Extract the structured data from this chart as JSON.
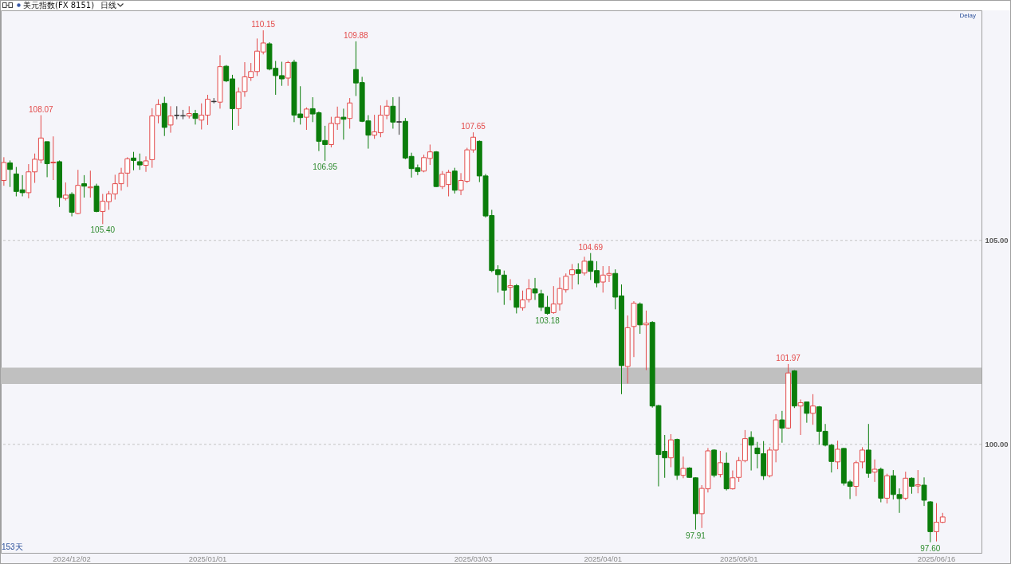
{
  "chart_data": {
    "type": "candlestick",
    "title": "美元指数(FX 8151)",
    "subtitle": "日线",
    "categories": [
      null,
      null,
      null,
      null,
      null,
      null,
      null,
      null,
      null,
      null,
      null,
      "2024/12/02",
      null,
      null,
      null,
      null,
      null,
      null,
      null,
      null,
      null,
      null,
      null,
      null,
      null,
      null,
      null,
      null,
      null,
      null,
      null,
      null,
      null,
      "2025/01/01",
      null,
      null,
      null,
      null,
      null,
      null,
      null,
      null,
      null,
      null,
      null,
      null,
      null,
      null,
      null,
      null,
      null,
      null,
      null,
      null,
      null,
      null,
      null,
      null,
      null,
      null,
      null,
      null,
      null,
      null,
      null,
      null,
      null,
      null,
      null,
      null,
      null,
      null,
      null,
      null,
      null,
      null,
      "2025/03/03",
      null,
      null,
      null,
      null,
      null,
      null,
      null,
      null,
      null,
      null,
      null,
      null,
      null,
      null,
      null,
      null,
      null,
      null,
      null,
      null,
      "2025/04/01",
      null,
      null,
      null,
      null,
      null,
      null,
      null,
      null,
      null,
      null,
      null,
      null,
      null,
      null,
      null,
      null,
      null,
      null,
      null,
      null,
      null,
      "2025/05/01",
      null,
      null,
      null,
      null,
      null,
      null,
      null,
      null,
      null,
      null,
      null,
      null,
      null,
      null,
      null,
      null,
      null,
      null,
      null,
      null,
      null,
      null,
      null,
      null,
      null,
      null,
      null,
      null,
      null,
      null,
      null,
      "2025/06/16",
      null
    ],
    "ohlc": [
      [
        106.47,
        107.04,
        106.34,
        106.91
      ],
      [
        106.9,
        106.96,
        106.31,
        106.74
      ],
      [
        106.63,
        106.8,
        106.08,
        106.2
      ],
      [
        106.24,
        106.6,
        106.08,
        106.17
      ],
      [
        106.17,
        106.87,
        106.03,
        106.68
      ],
      [
        106.68,
        107.13,
        106.41,
        106.99
      ],
      [
        106.97,
        108.07,
        106.89,
        107.51
      ],
      [
        107.42,
        107.42,
        106.55,
        106.88
      ],
      [
        106.9,
        107.55,
        106.48,
        106.92
      ],
      [
        106.93,
        106.96,
        105.82,
        106.05
      ],
      [
        106.03,
        106.42,
        105.98,
        106.11
      ],
      [
        106.13,
        106.18,
        105.59,
        105.69
      ],
      [
        105.66,
        106.73,
        105.64,
        106.35
      ],
      [
        106.39,
        106.6,
        106.05,
        106.33
      ],
      [
        106.29,
        106.71,
        106.05,
        106.31
      ],
      [
        106.33,
        106.39,
        105.69,
        105.71
      ],
      [
        105.71,
        106.14,
        105.4,
        105.96
      ],
      [
        105.95,
        106.21,
        105.75,
        106.14
      ],
      [
        106.14,
        106.61,
        106.0,
        106.39
      ],
      [
        106.39,
        106.78,
        106.22,
        106.65
      ],
      [
        106.65,
        107.04,
        106.31,
        107.0
      ],
      [
        107.02,
        107.17,
        106.72,
        106.96
      ],
      [
        106.93,
        107.13,
        106.73,
        106.85
      ],
      [
        106.84,
        107.06,
        106.68,
        106.95
      ],
      [
        106.98,
        108.24,
        106.78,
        108.05
      ],
      [
        108.06,
        108.46,
        107.87,
        108.33
      ],
      [
        108.36,
        108.52,
        107.56,
        107.77
      ],
      [
        107.83,
        108.29,
        107.64,
        108.05
      ],
      [
        108.07,
        108.29,
        107.97,
        108.06
      ],
      [
        108.06,
        108.2,
        107.97,
        108.05
      ],
      [
        108.05,
        108.29,
        107.99,
        108.11
      ],
      [
        108.11,
        108.2,
        107.84,
        107.99
      ],
      [
        107.95,
        108.36,
        107.72,
        108.07
      ],
      [
        108.07,
        108.57,
        107.83,
        108.46
      ],
      [
        108.41,
        108.49,
        108.36,
        108.4
      ],
      [
        108.39,
        109.54,
        108.23,
        109.26
      ],
      [
        109.27,
        109.3,
        108.88,
        108.91
      ],
      [
        108.96,
        109.06,
        107.71,
        108.23
      ],
      [
        108.23,
        108.75,
        107.81,
        108.64
      ],
      [
        108.65,
        109.37,
        108.52,
        109.01
      ],
      [
        108.99,
        109.35,
        108.91,
        109.14
      ],
      [
        109.14,
        109.95,
        109.03,
        109.64
      ],
      [
        109.62,
        110.15,
        109.56,
        109.84
      ],
      [
        109.82,
        109.86,
        109.17,
        109.2
      ],
      [
        109.22,
        109.4,
        108.57,
        109.04
      ],
      [
        109.04,
        109.38,
        108.79,
        108.96
      ],
      [
        108.98,
        109.4,
        108.79,
        109.36
      ],
      [
        109.37,
        109.43,
        107.9,
        108.07
      ],
      [
        108.1,
        108.78,
        107.84,
        108.01
      ],
      [
        108.02,
        108.26,
        107.71,
        108.22
      ],
      [
        108.23,
        108.51,
        107.9,
        108.1
      ],
      [
        108.13,
        108.16,
        107.19,
        107.43
      ],
      [
        107.45,
        107.81,
        106.95,
        107.35
      ],
      [
        107.35,
        108.03,
        107.28,
        107.87
      ],
      [
        107.86,
        108.28,
        107.71,
        108.02
      ],
      [
        108.02,
        108.23,
        107.47,
        107.97
      ],
      [
        107.99,
        108.49,
        107.74,
        108.37
      ],
      [
        109.19,
        109.88,
        108.54,
        108.86
      ],
      [
        108.87,
        109.01,
        107.9,
        107.92
      ],
      [
        107.93,
        108.07,
        107.25,
        107.58
      ],
      [
        107.58,
        108.08,
        107.49,
        107.66
      ],
      [
        107.64,
        108.31,
        107.53,
        108.07
      ],
      [
        108.07,
        108.44,
        107.97,
        108.29
      ],
      [
        108.29,
        108.51,
        107.74,
        107.9
      ],
      [
        107.91,
        108.52,
        107.59,
        107.9
      ],
      [
        107.92,
        108.0,
        106.99,
        107.02
      ],
      [
        107.06,
        107.15,
        106.54,
        106.76
      ],
      [
        106.78,
        106.86,
        106.6,
        106.69
      ],
      [
        106.7,
        107.1,
        106.67,
        107.03
      ],
      [
        107.01,
        107.35,
        106.85,
        107.17
      ],
      [
        107.17,
        107.19,
        106.31,
        106.32
      ],
      [
        106.32,
        106.7,
        106.26,
        106.62
      ],
      [
        106.37,
        106.73,
        106.08,
        106.67
      ],
      [
        106.7,
        106.78,
        106.15,
        106.23
      ],
      [
        106.23,
        106.65,
        106.11,
        106.47
      ],
      [
        106.45,
        107.27,
        106.41,
        107.22
      ],
      [
        107.22,
        107.65,
        107.15,
        107.53
      ],
      [
        107.43,
        107.45,
        106.43,
        106.58
      ],
      [
        106.58,
        106.63,
        105.56,
        105.6
      ],
      [
        105.61,
        105.75,
        104.22,
        104.26
      ],
      [
        104.28,
        104.39,
        103.72,
        104.16
      ],
      [
        104.15,
        104.26,
        103.42,
        103.78
      ],
      [
        103.85,
        104.05,
        103.53,
        103.89
      ],
      [
        103.89,
        103.93,
        103.21,
        103.36
      ],
      [
        103.35,
        103.77,
        103.28,
        103.54
      ],
      [
        103.55,
        104.05,
        103.48,
        103.81
      ],
      [
        103.81,
        104.08,
        103.54,
        103.71
      ],
      [
        103.69,
        103.79,
        103.27,
        103.36
      ],
      [
        103.36,
        103.64,
        103.18,
        103.21
      ],
      [
        103.23,
        103.88,
        103.2,
        103.44
      ],
      [
        103.44,
        104.09,
        103.28,
        103.82
      ],
      [
        103.79,
        104.19,
        103.72,
        104.12
      ],
      [
        104.16,
        104.42,
        103.8,
        104.28
      ],
      [
        104.28,
        104.44,
        103.92,
        104.19
      ],
      [
        104.2,
        104.6,
        104.14,
        104.49
      ],
      [
        104.49,
        104.69,
        104.03,
        104.24
      ],
      [
        104.26,
        104.49,
        103.85,
        103.96
      ],
      [
        103.98,
        104.37,
        103.72,
        104.15
      ],
      [
        104.15,
        104.37,
        103.98,
        104.19
      ],
      [
        104.19,
        104.29,
        103.31,
        103.61
      ],
      [
        103.64,
        103.92,
        101.23,
        101.93
      ],
      [
        101.91,
        103.16,
        101.49,
        102.86
      ],
      [
        102.89,
        103.51,
        102.14,
        103.46
      ],
      [
        103.44,
        103.48,
        102.71,
        102.93
      ],
      [
        102.93,
        103.28,
        101.82,
        102.97
      ],
      [
        102.99,
        103.02,
        100.9,
        100.94
      ],
      [
        100.95,
        100.97,
        98.97,
        99.75
      ],
      [
        99.83,
        100.23,
        99.18,
        99.67
      ],
      [
        99.67,
        100.25,
        99.44,
        100.11
      ],
      [
        100.12,
        100.14,
        99.13,
        99.24
      ],
      [
        99.24,
        99.7,
        99.17,
        99.41
      ],
      [
        99.42,
        99.44,
        99.18,
        99.19
      ],
      [
        99.18,
        99.19,
        97.91,
        98.3
      ],
      [
        98.3,
        99.0,
        97.95,
        98.92
      ],
      [
        98.91,
        99.91,
        98.82,
        99.84
      ],
      [
        99.86,
        99.88,
        99.19,
        99.24
      ],
      [
        99.26,
        99.84,
        99.19,
        99.55
      ],
      [
        99.54,
        99.8,
        98.87,
        98.91
      ],
      [
        98.91,
        99.36,
        98.89,
        99.18
      ],
      [
        99.19,
        99.69,
        99.08,
        99.6
      ],
      [
        99.6,
        100.35,
        99.56,
        100.14
      ],
      [
        100.17,
        100.32,
        99.36,
        99.98
      ],
      [
        99.91,
        100.06,
        99.41,
        99.77
      ],
      [
        99.77,
        100.08,
        99.13,
        99.23
      ],
      [
        99.23,
        99.93,
        99.19,
        99.86
      ],
      [
        99.86,
        100.74,
        99.56,
        100.6
      ],
      [
        100.6,
        100.82,
        100.04,
        100.4
      ],
      [
        100.4,
        101.97,
        100.38,
        101.75
      ],
      [
        101.8,
        101.82,
        100.89,
        100.94
      ],
      [
        100.94,
        101.1,
        100.23,
        101.02
      ],
      [
        101.04,
        101.05,
        100.53,
        100.76
      ],
      [
        100.76,
        101.23,
        100.48,
        100.94
      ],
      [
        100.92,
        100.94,
        99.99,
        100.32
      ],
      [
        100.32,
        100.5,
        99.95,
        99.98
      ],
      [
        99.98,
        100.01,
        99.31,
        99.58
      ],
      [
        99.57,
        100.09,
        99.39,
        99.88
      ],
      [
        99.9,
        99.91,
        98.99,
        99.05
      ],
      [
        99.08,
        99.13,
        98.66,
        98.97
      ],
      [
        98.97,
        99.6,
        98.73,
        99.55
      ],
      [
        99.57,
        99.93,
        99.41,
        99.86
      ],
      [
        99.86,
        100.5,
        99.18,
        99.29
      ],
      [
        99.32,
        99.63,
        99.08,
        99.39
      ],
      [
        99.39,
        99.43,
        98.58,
        98.68
      ],
      [
        98.68,
        99.28,
        98.55,
        99.23
      ],
      [
        99.23,
        99.37,
        98.65,
        98.77
      ],
      [
        98.77,
        98.92,
        98.32,
        98.67
      ],
      [
        98.68,
        99.33,
        98.63,
        99.17
      ],
      [
        99.17,
        99.19,
        98.79,
        98.97
      ],
      [
        98.98,
        99.37,
        98.8,
        99.01
      ],
      [
        99.0,
        99.19,
        98.49,
        98.63
      ],
      [
        98.59,
        98.61,
        97.6,
        97.86
      ],
      [
        97.86,
        98.56,
        97.62,
        98.09
      ],
      [
        98.09,
        98.32,
        98.07,
        98.22
      ]
    ],
    "colors": [
      "#e34a4a",
      "#0b7d0b",
      "#0b7d0b",
      "#0b7d0b",
      "#e34a4a",
      "#e34a4a",
      "#e34a4a",
      "#0b7d0b",
      "#e34a4a",
      "#0b7d0b",
      "#e34a4a",
      "#0b7d0b",
      "#e34a4a",
      "#0b7d0b",
      "#e34a4a",
      "#0b7d0b",
      "#e34a4a",
      "#e34a4a",
      "#e34a4a",
      "#e34a4a",
      "#e34a4a",
      "#0b7d0b",
      "#0b7d0b",
      "#e34a4a",
      "#e34a4a",
      "#e34a4a",
      "#0b7d0b",
      "#e34a4a",
      "#333333",
      "#333333",
      "#e34a4a",
      "#0b7d0b",
      "#e34a4a",
      "#e34a4a",
      "#333333",
      "#e34a4a",
      "#0b7d0b",
      "#0b7d0b",
      "#e34a4a",
      "#e34a4a",
      "#e34a4a",
      "#e34a4a",
      "#e34a4a",
      "#0b7d0b",
      "#0b7d0b",
      "#0b7d0b",
      "#e34a4a",
      "#0b7d0b",
      "#0b7d0b",
      "#e34a4a",
      "#0b7d0b",
      "#0b7d0b",
      "#0b7d0b",
      "#e34a4a",
      "#e34a4a",
      "#0b7d0b",
      "#e34a4a",
      "#0b7d0b",
      "#0b7d0b",
      "#0b7d0b",
      "#e34a4a",
      "#e34a4a",
      "#e34a4a",
      "#0b7d0b",
      "#333333",
      "#0b7d0b",
      "#0b7d0b",
      "#0b7d0b",
      "#e34a4a",
      "#e34a4a",
      "#0b7d0b",
      "#e34a4a",
      "#e34a4a",
      "#0b7d0b",
      "#e34a4a",
      "#e34a4a",
      "#e34a4a",
      "#0b7d0b",
      "#0b7d0b",
      "#0b7d0b",
      "#0b7d0b",
      "#0b7d0b",
      "#e34a4a",
      "#0b7d0b",
      "#e34a4a",
      "#e34a4a",
      "#0b7d0b",
      "#0b7d0b",
      "#0b7d0b",
      "#e34a4a",
      "#e34a4a",
      "#e34a4a",
      "#e34a4a",
      "#0b7d0b",
      "#e34a4a",
      "#0b7d0b",
      "#0b7d0b",
      "#e34a4a",
      "#e34a4a",
      "#0b7d0b",
      "#0b7d0b",
      "#e34a4a",
      "#e34a4a",
      "#0b7d0b",
      "#e34a4a",
      "#0b7d0b",
      "#0b7d0b",
      "#0b7d0b",
      "#e34a4a",
      "#0b7d0b",
      "#e34a4a",
      "#0b7d0b",
      "#0b7d0b",
      "#e34a4a",
      "#e34a4a",
      "#0b7d0b",
      "#e34a4a",
      "#0b7d0b",
      "#e34a4a",
      "#e34a4a",
      "#e34a4a",
      "#0b7d0b",
      "#0b7d0b",
      "#0b7d0b",
      "#e34a4a",
      "#e34a4a",
      "#0b7d0b",
      "#e34a4a",
      "#0b7d0b",
      "#e34a4a",
      "#0b7d0b",
      "#e34a4a",
      "#0b7d0b",
      "#0b7d0b",
      "#0b7d0b",
      "#e34a4a",
      "#0b7d0b",
      "#0b7d0b",
      "#e34a4a",
      "#e34a4a",
      "#0b7d0b",
      "#e34a4a",
      "#0b7d0b",
      "#e34a4a",
      "#0b7d0b",
      "#0b7d0b",
      "#e34a4a",
      "#0b7d0b",
      "#e34a4a",
      "#0b7d0b",
      "#0b7d0b",
      "#e34a4a",
      "#e34a4a"
    ],
    "ylim": [
      97.34,
      110.64
    ],
    "yticks": [
      {
        "value": 100,
        "label": "100.00"
      },
      {
        "value": 105,
        "label": "105.00"
      }
    ],
    "grid": "y",
    "bands": [
      {
        "axis": "y",
        "from": 101.48,
        "to": 101.88,
        "color": "#c0c0c0"
      }
    ],
    "annotations": [
      {
        "text": "108.07",
        "y": 108.07
      },
      {
        "text": "110.15",
        "y": 110.15
      },
      {
        "text": "109.88",
        "y": 109.88
      },
      {
        "text": "107.65",
        "y": 107.65
      },
      {
        "text": "104.69",
        "y": 104.69
      },
      {
        "text": "101.97",
        "y": 101.97
      },
      {
        "text": "105.40",
        "y": 105.4
      },
      {
        "text": "106.95",
        "y": 106.95
      },
      {
        "text": "103.18",
        "y": 103.18
      },
      {
        "text": "97.91",
        "y": 97.91
      },
      {
        "text": "97.60",
        "y": 97.6
      },
      "Delay",
      "153天"
    ]
  }
}
